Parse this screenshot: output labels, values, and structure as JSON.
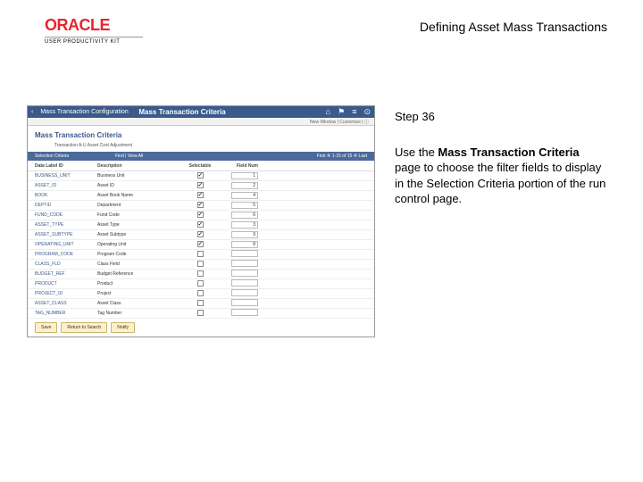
{
  "header": {
    "logo_text": "ORACLE",
    "upk": "USER PRODUCTIVITY KIT",
    "title": "Defining Asset Mass Transactions"
  },
  "right": {
    "step": "Step 36",
    "desc_pre": "Use the ",
    "desc_bold": "Mass Transaction Criteria",
    "desc_post": " page to choose the filter fields to display in the Selection Criteria portion of the run control page."
  },
  "screenshot": {
    "nav": {
      "back": "‹",
      "breadcrumb": "Mass Transaction Configuration",
      "page": "Mass Transaction Criteria",
      "icons": [
        "⌂",
        "⚑",
        "≡",
        "⊙"
      ]
    },
    "subbar": "New Window | Customize | ⓘ",
    "page_title": "Mass Transaction Criteria",
    "meta": "Transaction  A-U   Asset Cost Adjustment",
    "grid": {
      "label": "Selection Criteria",
      "find": "Find | View All",
      "range": "First ④ 1-15 of 15 ④ Last"
    },
    "columns": {
      "c1": "Data Label ID",
      "c2": "Description",
      "c3": "Selectable",
      "c4": "Field Num"
    },
    "rows": [
      {
        "id": "BUSINESS_UNIT",
        "desc": "Business Unit",
        "chk": true,
        "seq": "1"
      },
      {
        "id": "ASSET_ID",
        "desc": "Asset ID",
        "chk": true,
        "seq": "2"
      },
      {
        "id": "BOOK",
        "desc": "Asset Book Name",
        "chk": true,
        "seq": "4"
      },
      {
        "id": "DEPTID",
        "desc": "Department",
        "chk": true,
        "seq": "5"
      },
      {
        "id": "FUND_CODE",
        "desc": "Fund Code",
        "chk": true,
        "seq": "6"
      },
      {
        "id": "ASSET_TYPE",
        "desc": "Asset Type",
        "chk": true,
        "seq": "3"
      },
      {
        "id": "ASSET_SUBTYPE",
        "desc": "Asset Subtype",
        "chk": true,
        "seq": "9"
      },
      {
        "id": "OPERATING_UNIT",
        "desc": "Operating Unit",
        "chk": true,
        "seq": "8"
      },
      {
        "id": "PROGRAM_CODE",
        "desc": "Program Code",
        "chk": false,
        "seq": ""
      },
      {
        "id": "CLASS_FLD",
        "desc": "Class Field",
        "chk": false,
        "seq": ""
      },
      {
        "id": "BUDGET_REF",
        "desc": "Budget Reference",
        "chk": false,
        "seq": ""
      },
      {
        "id": "PRODUCT",
        "desc": "Product",
        "chk": false,
        "seq": ""
      },
      {
        "id": "PROJECT_ID",
        "desc": "Project",
        "chk": false,
        "seq": ""
      },
      {
        "id": "ASSET_CLASS",
        "desc": "Asset Class",
        "chk": false,
        "seq": ""
      },
      {
        "id": "TAG_NUMBER",
        "desc": "Tag Number",
        "chk": false,
        "seq": ""
      }
    ],
    "buttons": {
      "save": "Save",
      "return": "Return to Search",
      "notify": "Notify"
    }
  }
}
